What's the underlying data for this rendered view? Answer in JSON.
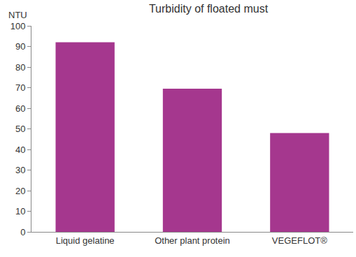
{
  "chart_data": {
    "type": "bar",
    "title": "Turbidity of floated must",
    "ylabel": "NTU",
    "categories": [
      "Liquid gelatine",
      "Other plant protein",
      "VEGEFLOT®"
    ],
    "values": [
      92,
      69.5,
      48
    ],
    "color": "#a5378e",
    "ylim": [
      0,
      100
    ],
    "yticks": [
      0,
      10,
      20,
      30,
      40,
      50,
      60,
      70,
      80,
      90,
      100
    ],
    "grid": false
  }
}
